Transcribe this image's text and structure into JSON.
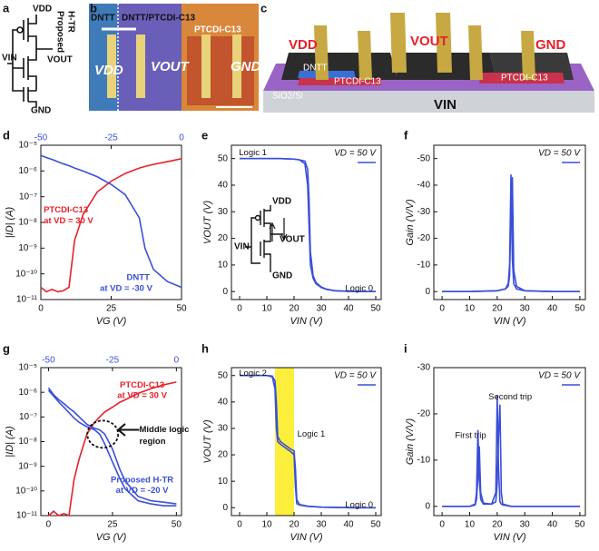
{
  "figure": {
    "panel_letters": [
      "a",
      "b",
      "c",
      "d",
      "e",
      "f",
      "g",
      "h",
      "i"
    ],
    "schematic_a": {
      "vdd": "VDD",
      "title": [
        "Proposed",
        "H-TR"
      ],
      "vout": "VOUT",
      "vin": "VIN",
      "gnd": "GND"
    },
    "micrograph_b": {
      "left": "DNTT",
      "middle": "DNTT/PTCDI-C13",
      "pad": "PTCDI-C13",
      "vdd": "VDD",
      "vout": "VOUT",
      "gnd": "GND"
    },
    "device_c": {
      "vdd": "VDD",
      "vout": "VOUT",
      "gnd": "GND",
      "dntt": "DNTT",
      "ptcdi_left": "PTCDI-C13",
      "ptcdi_right": "PTCDI-C13",
      "substrate": "SiO2/Si",
      "vin": "VIN"
    }
  },
  "chart_data": [
    {
      "type": "line",
      "xlabel": "VG (V)",
      "ylabel": "|ID| (A)",
      "yscale": "log",
      "xlim": [
        0,
        50
      ],
      "xticks": [
        0,
        25,
        50
      ],
      "x2lim": [
        -50,
        0
      ],
      "x2ticks": [
        -50,
        -25,
        0
      ],
      "x2color": "#3a4fd8",
      "ylim": [
        1e-11,
        1e-05
      ],
      "yticks": [
        {
          "value": 1e-11,
          "label": "10⁻¹¹"
        },
        {
          "value": 1e-10,
          "label": "10⁻¹⁰"
        },
        {
          "value": 1e-09,
          "label": "10⁻⁹"
        },
        {
          "value": 1e-08,
          "label": "10⁻⁸"
        },
        {
          "value": 1e-07,
          "label": "10⁻⁷"
        },
        {
          "value": 1e-06,
          "label": "10⁻⁶"
        },
        {
          "value": 1e-05,
          "label": "10⁻⁵"
        }
      ],
      "x": [
        0,
        2,
        4,
        6,
        8,
        10,
        12,
        15,
        20,
        25,
        30,
        35,
        37,
        40,
        45,
        50
      ],
      "series": [
        {
          "color": "#e8202a",
          "values": [
            3e-11,
            2e-11,
            2.5e-11,
            2e-11,
            2.2e-11,
            3e-11,
            2e-09,
            2e-08,
            1.5e-07,
            4e-07,
            8e-07,
            1.3e-06,
            1.5e-06,
            1.8e-06,
            2.3e-06,
            3e-06
          ]
        },
        {
          "color": "#3a4fd8",
          "values": [
            4e-06,
            3.3e-06,
            2.8e-06,
            2.3e-06,
            1.9e-06,
            1.6e-06,
            1.3e-06,
            1e-06,
            6e-07,
            3e-07,
            1.2e-07,
            1.5e-08,
            1e-09,
            1.5e-10,
            5e-11,
            3e-11
          ]
        }
      ],
      "annotations": [
        {
          "text": "PTCDI-C13",
          "color": "#e8202a"
        },
        {
          "text": "at VD = 30 V",
          "color": "#e8202a"
        },
        {
          "text": "DNTT",
          "color": "#3a4fd8"
        },
        {
          "text": "at VD = -30 V",
          "color": "#3a4fd8"
        }
      ]
    },
    {
      "type": "line",
      "xlabel": "VIN (V)",
      "ylabel": "VOUT (V)",
      "xlim": [
        -3,
        52
      ],
      "xticks": [
        0,
        10,
        20,
        30,
        40,
        50
      ],
      "ylim": [
        -3,
        55
      ],
      "yticks": [
        0,
        10,
        20,
        30,
        40,
        50
      ],
      "x": [
        0,
        5,
        10,
        15,
        20,
        22,
        24,
        25,
        25.5,
        26,
        27,
        28,
        30,
        32,
        35,
        40,
        45,
        50
      ],
      "series": [
        {
          "name": "VD = 50 V",
          "color": "#3a4fd8",
          "values": [
            50,
            50,
            50,
            50,
            49.8,
            49.5,
            48,
            40,
            25,
            10,
            5,
            3,
            1.5,
            0.8,
            0.3,
            0.1,
            0,
            0
          ]
        },
        {
          "color": "#3a4fd8",
          "values": [
            50,
            50,
            50,
            50,
            49.8,
            49.5,
            49,
            46,
            35,
            15,
            6,
            3.5,
            1.7,
            0.9,
            0.3,
            0.1,
            0,
            0
          ]
        }
      ],
      "legend": "upper right",
      "inset_labels": [
        "VDD",
        "VIN",
        "VOUT",
        "GND"
      ],
      "annotations": [
        {
          "text": "Logic 1"
        },
        {
          "text": "Logic 0"
        }
      ]
    },
    {
      "type": "line",
      "xlabel": "VIN (V)",
      "ylabel": "Gain (V/V)",
      "xlim": [
        -3,
        52
      ],
      "xticks": [
        0,
        10,
        20,
        30,
        40,
        50
      ],
      "ylim": [
        3,
        -55
      ],
      "yticks": [
        0,
        -10,
        -20,
        -30,
        -40,
        -50
      ],
      "x": [
        0,
        10,
        20,
        23,
        24,
        24.5,
        25,
        25.5,
        26,
        27,
        30,
        40,
        50
      ],
      "series": [
        {
          "name": "VD = 50 V",
          "color": "#3a4fd8",
          "values": [
            0,
            0,
            -0.3,
            -1,
            -3,
            -10,
            -44,
            -12,
            -3,
            -1,
            -0.3,
            0,
            0
          ]
        },
        {
          "color": "#3a4fd8",
          "values": [
            0,
            0,
            -0.3,
            -1,
            -2,
            -6,
            -30,
            -43,
            -8,
            -2,
            -0.3,
            0,
            0
          ]
        }
      ],
      "legend": "upper right",
      "annotations": []
    },
    {
      "type": "line",
      "xlabel": "VG (V)",
      "ylabel": "|ID| (A)",
      "yscale": "log",
      "xlim": [
        -3,
        52
      ],
      "xticks": [
        0,
        25,
        50
      ],
      "x2lim": [
        -53,
        2
      ],
      "x2ticks": [
        -50,
        -25,
        0
      ],
      "x2color": "#3a4fd8",
      "ylim": [
        1e-11,
        1e-05
      ],
      "yticks": [
        {
          "value": 1e-11,
          "label": "10⁻¹¹"
        },
        {
          "value": 1e-10,
          "label": "10⁻¹⁰"
        },
        {
          "value": 1e-09,
          "label": "10⁻⁹"
        },
        {
          "value": 1e-08,
          "label": "10⁻⁸"
        },
        {
          "value": 1e-07,
          "label": "10⁻⁷"
        },
        {
          "value": 1e-06,
          "label": "10⁻⁶"
        },
        {
          "value": 1e-05,
          "label": "10⁻⁵"
        }
      ],
      "x": [
        0,
        2,
        4,
        6,
        8,
        10,
        12,
        15,
        18,
        20,
        22,
        25,
        28,
        30,
        35,
        40,
        45,
        50
      ],
      "series": [
        {
          "color": "#e8202a",
          "values": [
            1e-11,
            1.5e-11,
            1e-11,
            1.2e-11,
            1e-11,
            3e-10,
            2e-09,
            2e-08,
            6e-08,
            1e-07,
            1.6e-07,
            2.5e-07,
            4e-07,
            5e-07,
            9e-07,
            1.4e-06,
            2e-06,
            2.6e-06
          ]
        },
        {
          "color": "#3a4fd8",
          "values": [
            1.5e-06,
            8e-07,
            5e-07,
            3.5e-07,
            2.3e-07,
            1.6e-07,
            1e-07,
            5e-08,
            3.5e-08,
            3e-08,
            2e-08,
            5e-09,
            7e-10,
            2.5e-10,
            6e-11,
            4e-11,
            3.5e-11,
            3e-11
          ]
        },
        {
          "color": "#3a4fd8",
          "values": [
            1.2e-06,
            7e-07,
            4e-07,
            2.5e-07,
            1.5e-07,
            9e-08,
            6e-08,
            4e-08,
            3e-08,
            2e-08,
            8e-09,
            1.5e-09,
            3e-10,
            1.2e-10,
            4e-11,
            3e-11,
            2.5e-11,
            2.5e-11
          ]
        }
      ],
      "annotations": [
        {
          "text": "PTCDI-C13",
          "color": "#e8202a"
        },
        {
          "text": "at VD = 30 V",
          "color": "#e8202a"
        },
        {
          "text": "Middle logic",
          "color": "#111111"
        },
        {
          "text": "region",
          "color": "#111111"
        },
        {
          "text": "Proposed H-TR",
          "color": "#3a4fd8"
        },
        {
          "text": "at VD = -20 V",
          "color": "#3a4fd8"
        }
      ]
    },
    {
      "type": "line",
      "xlabel": "VIN (V)",
      "ylabel": "VOUT (V)",
      "xlim": [
        -3,
        52
      ],
      "xticks": [
        0,
        10,
        20,
        30,
        40,
        50
      ],
      "ylim": [
        -3,
        53
      ],
      "yticks": [
        0,
        10,
        20,
        30,
        40,
        50
      ],
      "highlight": {
        "xrange": [
          13,
          20
        ],
        "color": "#fbef3c"
      },
      "x": [
        0,
        5,
        10,
        12,
        13,
        13.5,
        14,
        15,
        17,
        19,
        20,
        20.5,
        21,
        22,
        25,
        30,
        40,
        50
      ],
      "series": [
        {
          "name": "VD = 50 V",
          "color": "#3a4fd8",
          "values": [
            50,
            50,
            50,
            49.5,
            45,
            30,
            25,
            24,
            22.5,
            21,
            20,
            8,
            1.5,
            1,
            0.5,
            0.2,
            0,
            0
          ]
        },
        {
          "color": "#3a4fd8",
          "values": [
            50,
            50,
            50,
            49.8,
            48,
            40,
            27,
            25,
            23.5,
            22,
            21.5,
            15,
            3,
            1.2,
            0.6,
            0.2,
            0,
            0
          ]
        }
      ],
      "legend": "upper right",
      "annotations": [
        {
          "text": "Logic 2"
        },
        {
          "text": "Logic 1"
        },
        {
          "text": "Logic 0"
        }
      ]
    },
    {
      "type": "line",
      "xlabel": "VIN (V)",
      "ylabel": "Gain (V/V)",
      "xlim": [
        -3,
        52
      ],
      "xticks": [
        0,
        10,
        20,
        30,
        40,
        50
      ],
      "ylim": [
        2,
        -30
      ],
      "yticks": [
        0,
        -10,
        -20,
        -30
      ],
      "x": [
        0,
        10,
        12,
        12.5,
        13,
        13.5,
        14,
        15,
        18,
        19.5,
        20,
        20.5,
        21,
        21.5,
        22,
        25,
        30,
        40,
        50
      ],
      "series": [
        {
          "name": "VD = 50 V",
          "color": "#3a4fd8",
          "values": [
            0,
            0,
            -0.5,
            -3,
            -16.5,
            -6,
            -1.5,
            -0.5,
            -0.5,
            -3,
            -24,
            -8,
            -1,
            -0.5,
            -0.3,
            0,
            0,
            0,
            0
          ]
        },
        {
          "color": "#3a4fd8",
          "values": [
            0,
            0,
            -0.3,
            -1.5,
            -6,
            -13,
            -3,
            -0.7,
            -0.5,
            -1,
            -5,
            -15,
            -22,
            -3,
            -0.5,
            0,
            0,
            0,
            0
          ]
        }
      ],
      "legend": "upper right",
      "annotations": [
        {
          "text": "First trip"
        },
        {
          "text": "Second trip"
        }
      ]
    }
  ]
}
